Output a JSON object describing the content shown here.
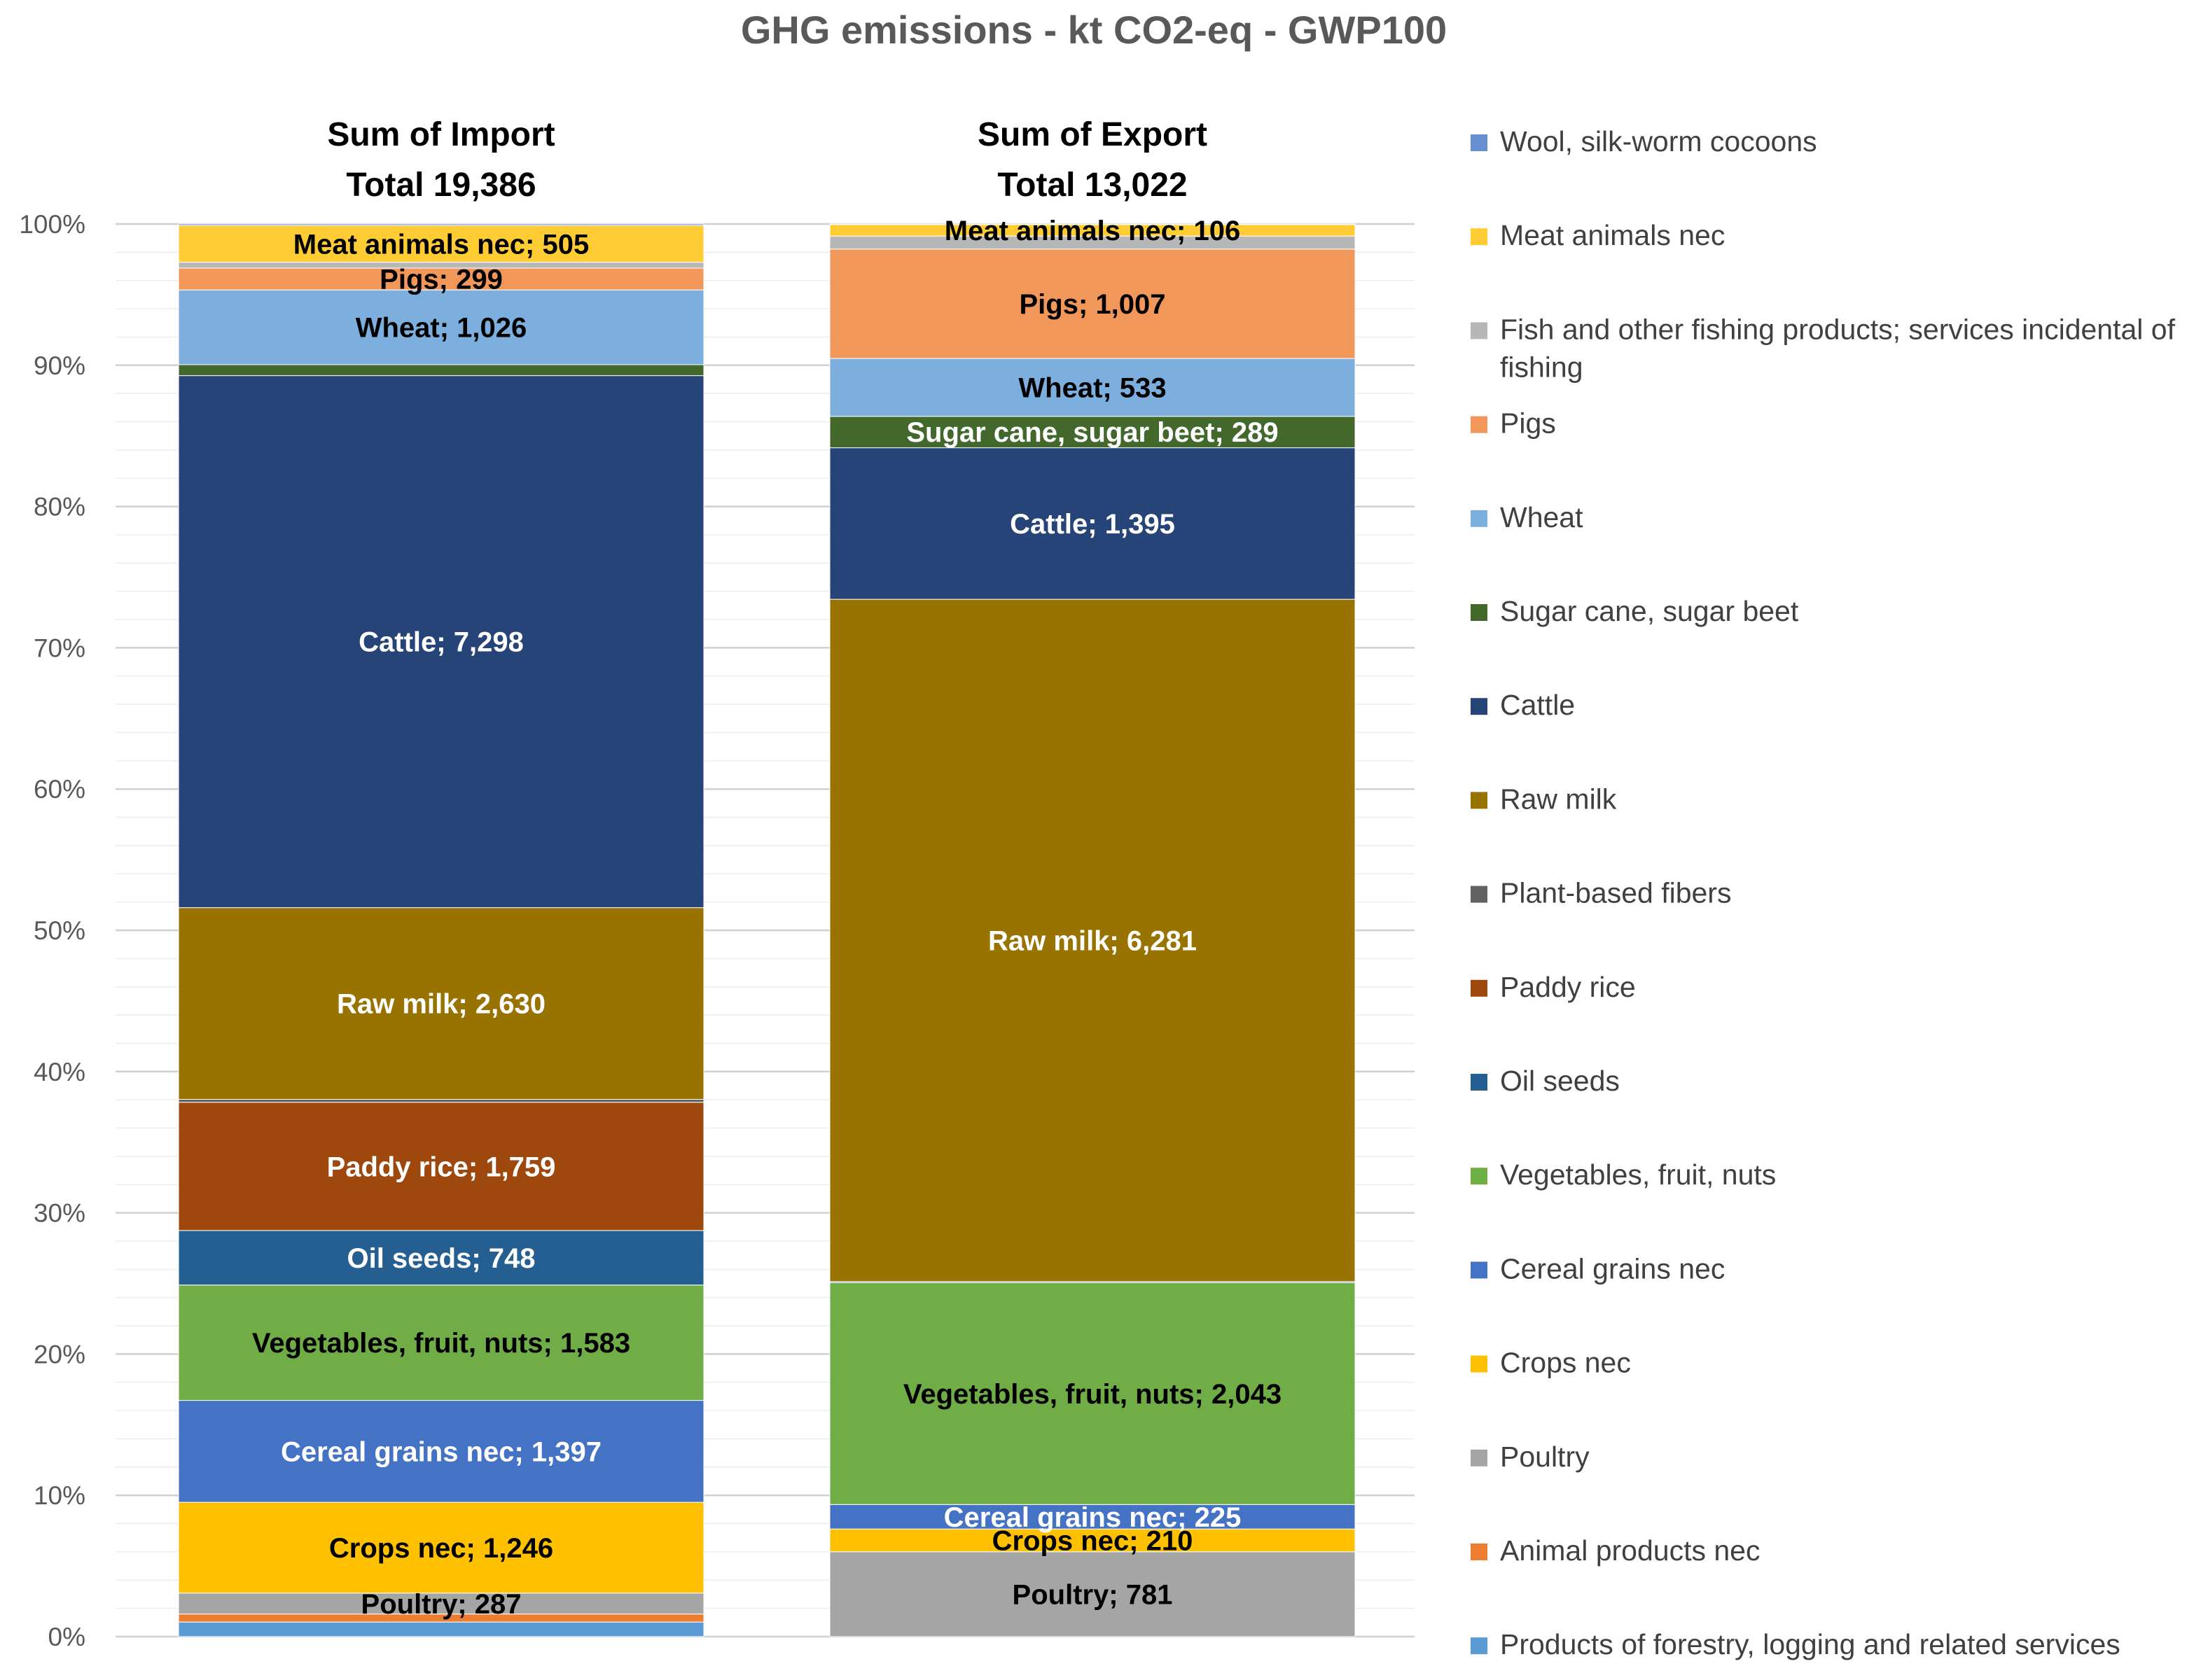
{
  "chart_data": {
    "type": "bar",
    "stacked": "percent",
    "title": "GHG emissions - kt CO2-eq - GWP100",
    "y_axis": {
      "ticks": [
        "0%",
        "10%",
        "20%",
        "30%",
        "40%",
        "50%",
        "60%",
        "70%",
        "80%",
        "90%",
        "100%"
      ],
      "ylim": [
        0,
        100
      ],
      "grid": true
    },
    "legend_position": "right",
    "categories": [
      {
        "heading": "Sum of Import",
        "total_label": "Total 19,386",
        "total": 19386
      },
      {
        "heading": "Sum of Export",
        "total_label": "Total 13,022",
        "total": 13022
      }
    ],
    "series": [
      {
        "name": "Products of forestry, logging and related services",
        "color": "#5b9bd5",
        "values": [
          200,
          0
        ],
        "labels": [
          "",
          ""
        ]
      },
      {
        "name": "Animal products nec",
        "color": "#ed7d31",
        "values": [
          110,
          0
        ],
        "labels": [
          "",
          ""
        ]
      },
      {
        "name": "Poultry",
        "color": "#a5a5a5",
        "values": [
          287,
          781
        ],
        "labels": [
          "Poultry; 287",
          "Poultry; 781"
        ]
      },
      {
        "name": "Crops nec",
        "color": "#ffc000",
        "values": [
          1246,
          210
        ],
        "labels": [
          "Crops nec; 1,246",
          "Crops nec; 210"
        ]
      },
      {
        "name": "Cereal grains nec",
        "color": "#4472c4",
        "values": [
          1397,
          225
        ],
        "labels": [
          "Cereal grains nec; 1,397",
          "Cereal grains nec; 225"
        ]
      },
      {
        "name": "Vegetables, fruit, nuts",
        "color": "#70ad47",
        "values": [
          1583,
          2043
        ],
        "labels": [
          "Vegetables, fruit, nuts; 1,583",
          "Vegetables, fruit, nuts; 2,043"
        ]
      },
      {
        "name": "Oil seeds",
        "color": "#255e91",
        "values": [
          748,
          10
        ],
        "labels": [
          "Oil seeds; 748",
          ""
        ]
      },
      {
        "name": "Paddy rice",
        "color": "#9e480e",
        "values": [
          1759,
          0
        ],
        "labels": [
          "Paddy rice; 1,759",
          ""
        ]
      },
      {
        "name": "Plant-based fibers",
        "color": "#636363",
        "values": [
          40,
          0
        ],
        "labels": [
          "",
          ""
        ]
      },
      {
        "name": "Raw milk",
        "color": "#997300",
        "values": [
          2630,
          6281
        ],
        "labels": [
          "Raw milk; 2,630",
          "Raw milk; 6,281"
        ]
      },
      {
        "name": "Cattle",
        "color": "#264478",
        "values": [
          7298,
          1395
        ],
        "labels": [
          "Cattle; 7,298",
          "Cattle; 1,395"
        ]
      },
      {
        "name": "Sugar cane, sugar beet",
        "color": "#43682b",
        "values": [
          150,
          289
        ],
        "labels": [
          "",
          "Sugar cane, sugar beet; 289"
        ]
      },
      {
        "name": "Wheat",
        "color": "#7cafdd",
        "values": [
          1026,
          533
        ],
        "labels": [
          "Wheat; 1,026",
          "Wheat; 533"
        ]
      },
      {
        "name": "Pigs",
        "color": "#f1975a",
        "values": [
          299,
          1007
        ],
        "labels": [
          "Pigs; 299",
          "Pigs; 1,007"
        ]
      },
      {
        "name": "Fish and other fishing products; services incidental of fishing",
        "color": "#b7b7b7",
        "values": [
          80,
          120
        ],
        "labels": [
          "",
          ""
        ]
      },
      {
        "name": "Meat animals nec",
        "color": "#ffcd33",
        "values": [
          505,
          106
        ],
        "labels": [
          "Meat animals nec; 505",
          "Meat animals nec; 106"
        ]
      },
      {
        "name": "Wool, silk-worm cocoons",
        "color": "#698ed0",
        "values": [
          20,
          5
        ],
        "labels": [
          "",
          ""
        ]
      }
    ],
    "legend": [
      {
        "text": "Wool, silk-worm cocoons",
        "color": "#698ed0"
      },
      {
        "text": "Meat animals nec",
        "color": "#ffcd33"
      },
      {
        "text": "Fish and other fishing products; services incidental of",
        "text2": "fishing",
        "color": "#b7b7b7"
      },
      {
        "text": "Pigs",
        "color": "#f1975a"
      },
      {
        "text": "Wheat",
        "color": "#7cafdd"
      },
      {
        "text": "Sugar cane, sugar beet",
        "color": "#43682b"
      },
      {
        "text": "Cattle",
        "color": "#264478"
      },
      {
        "text": "Raw milk",
        "color": "#997300"
      },
      {
        "text": "Plant-based fibers",
        "color": "#636363"
      },
      {
        "text": "Paddy rice",
        "color": "#9e480e"
      },
      {
        "text": "Oil seeds",
        "color": "#255e91"
      },
      {
        "text": "Vegetables, fruit, nuts",
        "color": "#70ad47"
      },
      {
        "text": "Cereal grains nec",
        "color": "#4472c4"
      },
      {
        "text": "Crops nec",
        "color": "#ffc000"
      },
      {
        "text": "Poultry",
        "color": "#a5a5a5"
      },
      {
        "text": "Animal products nec",
        "color": "#ed7d31"
      },
      {
        "text": "Products of forestry, logging and related services",
        "color": "#5b9bd5"
      }
    ],
    "light_label_color": "#ffffff",
    "dark_label_color": "#000000",
    "light_label_series": [
      "Cereal grains nec",
      "Oil seeds",
      "Paddy rice",
      "Raw milk",
      "Cattle",
      "Sugar cane, sugar beet"
    ],
    "dark_label_series": [
      "Poultry",
      "Crops nec",
      "Vegetables, fruit, nuts",
      "Wheat",
      "Pigs",
      "Meat animals nec"
    ]
  }
}
